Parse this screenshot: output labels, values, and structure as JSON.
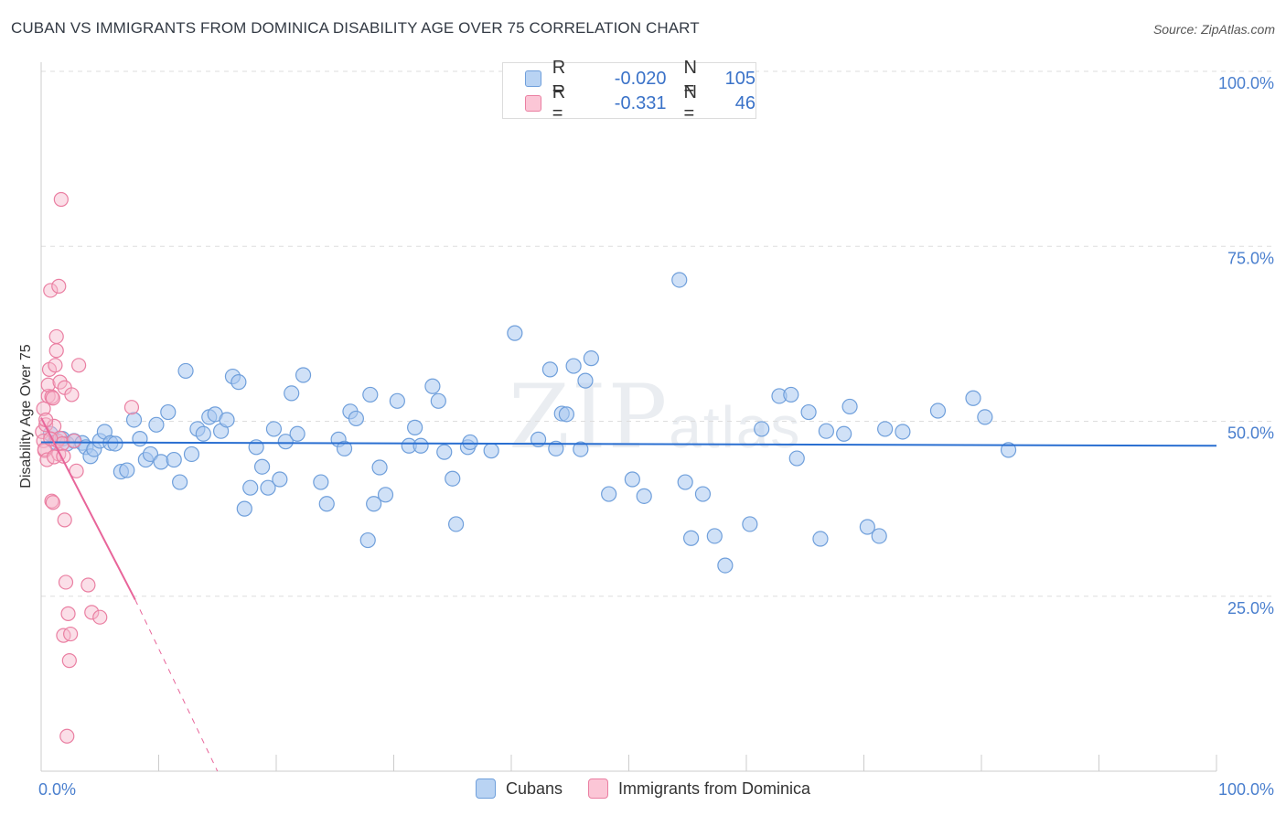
{
  "title": "CUBAN VS IMMIGRANTS FROM DOMINICA DISABILITY AGE OVER 75 CORRELATION CHART",
  "source": "Source: ZipAtlas.com",
  "watermark": {
    "big": "ZIP",
    "small": "atlas"
  },
  "legend_top": [
    {
      "r_label": "R =",
      "r_value": "-0.020",
      "n_label": "N =",
      "n_value": "105"
    },
    {
      "r_label": "R =",
      "r_value": "-0.331",
      "n_label": "N =",
      "n_value": "46"
    }
  ],
  "colors": {
    "blue_fill": "#aac8f0",
    "blue_stroke": "#6f9fdb",
    "blue_line": "#2a6fd1",
    "pink_fill": "#f7b9cc",
    "pink_stroke": "#ea7fa2",
    "pink_line": "#e8659a",
    "grid": "#dddddd",
    "tick_label": "#4a7fce"
  },
  "chart_data": {
    "type": "scatter",
    "title": "CUBAN VS IMMIGRANTS FROM DOMINICA DISABILITY AGE OVER 75 CORRELATION CHART",
    "xlabel": "",
    "ylabel": "Disability Age Over 75",
    "xlim": [
      0,
      100
    ],
    "ylim": [
      0,
      100
    ],
    "x_tick_labels": [
      "0.0%",
      "100.0%"
    ],
    "y_ticks": [
      25,
      50,
      75,
      100
    ],
    "y_tick_labels": [
      "25.0%",
      "50.0%",
      "75.0%",
      "100.0%"
    ],
    "grid": true,
    "legend_position": "top-center",
    "series": [
      {
        "name": "Cubans",
        "R": -0.02,
        "N": 105,
        "trend": {
          "x": [
            0,
            100
          ],
          "y": [
            47.0,
            46.5
          ]
        },
        "points": [
          [
            0.8,
            48.2
          ],
          [
            1.2,
            47.0
          ],
          [
            1.8,
            47.5
          ],
          [
            2.2,
            46.8
          ],
          [
            2.8,
            47.2
          ],
          [
            3.5,
            46.9
          ],
          [
            3.8,
            46.3
          ],
          [
            4.2,
            45.0
          ],
          [
            4.5,
            46.0
          ],
          [
            5.0,
            47.2
          ],
          [
            5.4,
            48.5
          ],
          [
            5.9,
            46.9
          ],
          [
            6.3,
            46.8
          ],
          [
            6.8,
            42.8
          ],
          [
            7.3,
            43.0
          ],
          [
            7.9,
            50.2
          ],
          [
            8.4,
            47.5
          ],
          [
            8.9,
            44.5
          ],
          [
            9.3,
            45.3
          ],
          [
            9.8,
            49.5
          ],
          [
            10.2,
            44.2
          ],
          [
            10.8,
            51.3
          ],
          [
            11.3,
            44.5
          ],
          [
            11.8,
            41.3
          ],
          [
            12.3,
            57.2
          ],
          [
            12.8,
            45.3
          ],
          [
            13.3,
            48.9
          ],
          [
            13.8,
            48.2
          ],
          [
            14.3,
            50.6
          ],
          [
            14.8,
            51.0
          ],
          [
            15.3,
            48.6
          ],
          [
            15.8,
            50.2
          ],
          [
            16.3,
            56.4
          ],
          [
            16.8,
            55.6
          ],
          [
            17.3,
            37.5
          ],
          [
            17.8,
            40.5
          ],
          [
            18.3,
            46.3
          ],
          [
            18.8,
            43.5
          ],
          [
            19.3,
            40.5
          ],
          [
            19.8,
            48.9
          ],
          [
            20.3,
            41.7
          ],
          [
            20.8,
            47.1
          ],
          [
            21.3,
            54.0
          ],
          [
            21.8,
            48.2
          ],
          [
            22.3,
            56.6
          ],
          [
            23.8,
            41.3
          ],
          [
            24.3,
            38.2
          ],
          [
            25.3,
            47.4
          ],
          [
            25.8,
            46.1
          ],
          [
            26.3,
            51.4
          ],
          [
            26.8,
            50.4
          ],
          [
            27.8,
            33.0
          ],
          [
            28.3,
            38.2
          ],
          [
            28.8,
            43.4
          ],
          [
            29.3,
            39.5
          ],
          [
            28.0,
            53.8
          ],
          [
            30.3,
            52.9
          ],
          [
            31.3,
            46.5
          ],
          [
            31.8,
            49.1
          ],
          [
            32.3,
            46.5
          ],
          [
            33.3,
            55.0
          ],
          [
            33.8,
            52.9
          ],
          [
            34.3,
            45.6
          ],
          [
            35.3,
            35.3
          ],
          [
            36.3,
            46.3
          ],
          [
            35.0,
            41.8
          ],
          [
            36.5,
            47.0
          ],
          [
            38.3,
            45.8
          ],
          [
            40.3,
            62.6
          ],
          [
            42.3,
            47.4
          ],
          [
            43.3,
            57.4
          ],
          [
            43.8,
            46.1
          ],
          [
            44.3,
            51.1
          ],
          [
            44.7,
            51.0
          ],
          [
            45.3,
            57.9
          ],
          [
            45.9,
            46.0
          ],
          [
            46.3,
            55.8
          ],
          [
            46.8,
            59.0
          ],
          [
            48.3,
            39.6
          ],
          [
            50.3,
            41.7
          ],
          [
            51.3,
            39.3
          ],
          [
            54.3,
            70.2
          ],
          [
            54.8,
            41.3
          ],
          [
            55.3,
            33.3
          ],
          [
            56.3,
            39.6
          ],
          [
            57.3,
            33.6
          ],
          [
            58.2,
            29.4
          ],
          [
            60.3,
            35.3
          ],
          [
            61.3,
            48.9
          ],
          [
            62.8,
            53.6
          ],
          [
            63.8,
            53.8
          ],
          [
            64.3,
            44.7
          ],
          [
            65.3,
            51.3
          ],
          [
            66.3,
            33.2
          ],
          [
            66.8,
            48.6
          ],
          [
            68.3,
            48.2
          ],
          [
            68.8,
            52.1
          ],
          [
            70.3,
            34.9
          ],
          [
            71.3,
            33.6
          ],
          [
            71.8,
            48.9
          ],
          [
            73.3,
            48.5
          ],
          [
            76.3,
            51.5
          ],
          [
            79.3,
            53.3
          ],
          [
            80.3,
            50.6
          ],
          [
            82.3,
            45.9
          ]
        ]
      },
      {
        "name": "Immigrants from Dominica",
        "R": -0.331,
        "N": 46,
        "trend": {
          "x": [
            0,
            8
          ],
          "y": [
            50.5,
            24.5
          ],
          "dashed_extension": {
            "x": [
              8,
              15
            ],
            "y": [
              24.5,
              0
            ]
          }
        },
        "points": [
          [
            0.1,
            48.5
          ],
          [
            0.2,
            47.2
          ],
          [
            0.2,
            51.8
          ],
          [
            0.3,
            45.8
          ],
          [
            0.3,
            46.0
          ],
          [
            0.4,
            49.5
          ],
          [
            0.5,
            44.5
          ],
          [
            0.6,
            53.6
          ],
          [
            0.6,
            55.2
          ],
          [
            0.7,
            57.4
          ],
          [
            0.8,
            68.7
          ],
          [
            0.9,
            53.5
          ],
          [
            0.9,
            38.6
          ],
          [
            1.0,
            38.4
          ],
          [
            1.0,
            53.3
          ],
          [
            1.1,
            49.3
          ],
          [
            1.2,
            58.0
          ],
          [
            1.3,
            62.1
          ],
          [
            1.3,
            60.1
          ],
          [
            1.4,
            47.2
          ],
          [
            1.5,
            69.3
          ],
          [
            1.5,
            45.3
          ],
          [
            1.6,
            55.6
          ],
          [
            1.6,
            47.6
          ],
          [
            1.7,
            81.7
          ],
          [
            1.8,
            46.8
          ],
          [
            1.9,
            19.4
          ],
          [
            2.0,
            54.8
          ],
          [
            2.0,
            35.9
          ],
          [
            2.1,
            27.0
          ],
          [
            2.2,
            5.0
          ],
          [
            2.3,
            22.5
          ],
          [
            2.4,
            15.8
          ],
          [
            2.5,
            19.6
          ],
          [
            2.6,
            53.8
          ],
          [
            2.8,
            47.2
          ],
          [
            3.0,
            42.9
          ],
          [
            3.2,
            58.0
          ],
          [
            4.0,
            26.6
          ],
          [
            4.3,
            22.7
          ],
          [
            5.0,
            22.0
          ],
          [
            7.7,
            52.0
          ],
          [
            0.4,
            50.2
          ],
          [
            1.1,
            44.9
          ],
          [
            0.8,
            47.5
          ],
          [
            1.9,
            45.0
          ]
        ]
      }
    ]
  },
  "legend_bottom": [
    {
      "label": "Cubans"
    },
    {
      "label": "Immigrants from Dominica"
    }
  ]
}
